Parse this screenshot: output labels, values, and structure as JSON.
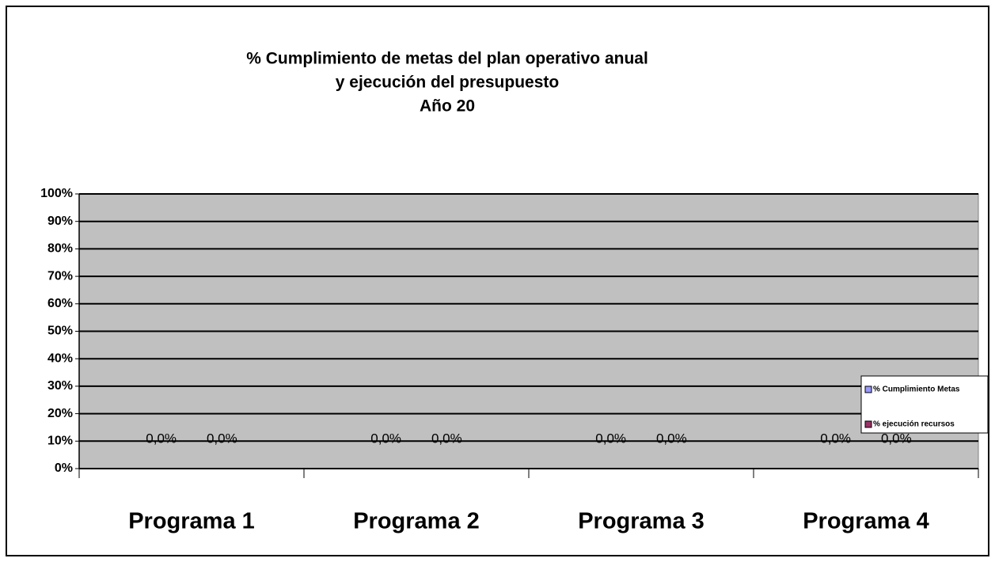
{
  "chart_data": {
    "type": "bar",
    "title": [
      "% Cumplimiento de metas del plan operativo anual",
      "y ejecución del presupuesto",
      "Año 20"
    ],
    "categories": [
      "Programa 1",
      "Programa 2",
      "Programa 3",
      "Programa 4"
    ],
    "series": [
      {
        "name": "% Cumplimiento Metas",
        "color": "#9999ff",
        "values": [
          0,
          0,
          0,
          0
        ],
        "value_labels": [
          "0,0%",
          "0,0%",
          "0,0%",
          "0,0%"
        ]
      },
      {
        "name": "% ejecución recursos",
        "color": "#993366",
        "values": [
          0,
          0,
          0,
          0
        ],
        "value_labels": [
          "0,0%",
          "0,0%",
          "0,0%",
          "0,0%"
        ]
      }
    ],
    "ylim": [
      0,
      100
    ],
    "yticks": [
      {
        "value": 0,
        "label": "0%"
      },
      {
        "value": 10,
        "label": "10%"
      },
      {
        "value": 20,
        "label": "20%"
      },
      {
        "value": 30,
        "label": "30%"
      },
      {
        "value": 40,
        "label": "40%"
      },
      {
        "value": 50,
        "label": "50%"
      },
      {
        "value": 60,
        "label": "60%"
      },
      {
        "value": 70,
        "label": "70%"
      },
      {
        "value": 80,
        "label": "80%"
      },
      {
        "value": 90,
        "label": "90%"
      },
      {
        "value": 100,
        "label": "100%"
      }
    ],
    "grid": true,
    "legend": "right"
  }
}
